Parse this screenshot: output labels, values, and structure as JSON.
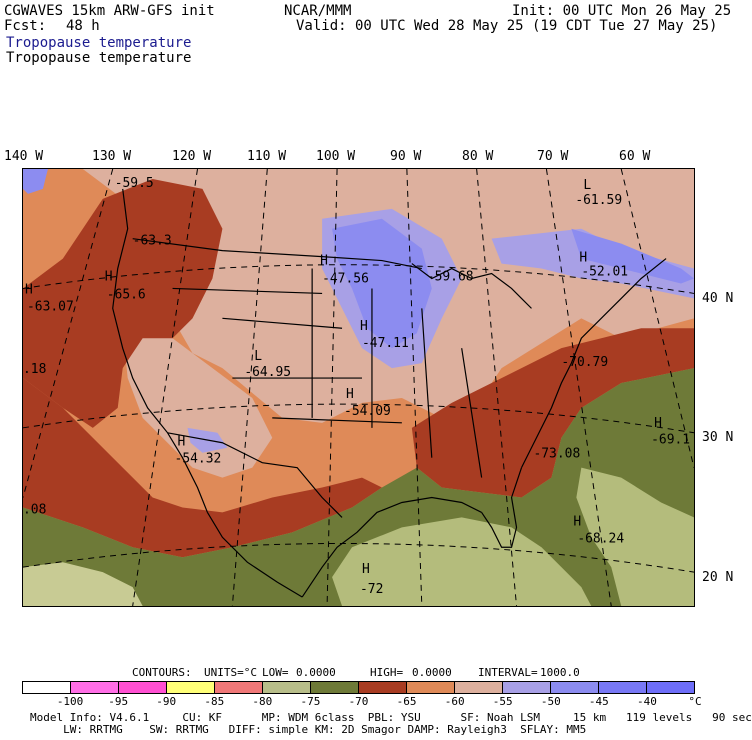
{
  "header": {
    "model": "CGWAVES 15km ARW-GFS init",
    "agency": "NCAR/MMM",
    "init": "Init: 00 UTC Mon 26 May 25",
    "fcst_label": "Fcst:",
    "fcst_value": "48 h",
    "valid": "Valid: 00 UTC Wed 28 May 25 (19 CDT Tue 27 May 25)",
    "field_title_1": "Tropopause temperature",
    "field_title_2": "Tropopause temperature"
  },
  "longitude_labels": [
    "140 W",
    "130 W",
    "120 W",
    "110 W",
    "100 W",
    "90 W",
    "80 W",
    "70 W",
    "60 W"
  ],
  "latitude_labels": [
    "40 N",
    "30 N",
    "20 N"
  ],
  "map": {
    "labels": [
      {
        "letter": "H",
        "value": "-63.07"
      },
      {
        "letter": "H",
        "value": "-65.6"
      },
      {
        "letter": "",
        "value": "-59.5"
      },
      {
        "letter": "",
        "value": "-63.3"
      },
      {
        "letter": "H",
        "value": "-47.56"
      },
      {
        "letter": "",
        "value": "-59.68"
      },
      {
        "letter": "L",
        "value": "-61.59"
      },
      {
        "letter": "H",
        "value": "-52.01"
      },
      {
        "letter": "H",
        "value": "-47.11"
      },
      {
        "letter": "L",
        "value": "-64.95"
      },
      {
        "letter": "",
        "value": "-70.79"
      },
      {
        "letter": "",
        "value": ".18"
      },
      {
        "letter": "H",
        "value": "-54.09"
      },
      {
        "letter": "H",
        "value": "-54.32"
      },
      {
        "letter": "H",
        "value": "-69.1"
      },
      {
        "letter": "",
        "value": "-73.08"
      },
      {
        "letter": "",
        "value": ".08"
      },
      {
        "letter": "H",
        "value": "-68.24"
      },
      {
        "letter": "H",
        "value": "-72"
      }
    ],
    "colors": {
      "purple_blue": "#8c8cf0",
      "lavender": "#a8a0e6",
      "pink_tan": "#ddb09e",
      "orange": "#df8a58",
      "dark_red": "#a83c22",
      "olive": "#6e7a38",
      "khaki": "#b4bc7c",
      "light_khaki": "#c8cb94"
    }
  },
  "contours_line": {
    "contours": "CONTOURS:",
    "units": "UNITS=°C",
    "low": "LOW=",
    "low_value": "0.0000",
    "high": "HIGH=",
    "high_value": "0.0000",
    "interval": "INTERVAL=",
    "interval_value": "1000.0"
  },
  "colorbar": {
    "colors": [
      "#ffffff",
      "#ff6ee6",
      "#ff50d2",
      "#ffff78",
      "#f07878",
      "#b8be8a",
      "#6e7a38",
      "#a83c22",
      "#df8a58",
      "#ddb09e",
      "#a8a0e6",
      "#8c8cf0",
      "#7878f5",
      "#6e6ef8"
    ],
    "labels": [
      "-100",
      "-95",
      "-90",
      "-85",
      "-80",
      "-75",
      "-70",
      "-65",
      "-60",
      "-55",
      "-50",
      "-45",
      "-40",
      "°C"
    ]
  },
  "footer": {
    "line1": "Model Info: V4.6.1     CU: KF      MP: WDM 6class  PBL: YSU      SF: Noah LSM     15 km   119 levels   90 sec",
    "line2": "     LW: RRTMG    SW: RRTMG   DIFF: simple KM: 2D Smagor DAMP: Rayleigh3  SFLAY: MM5"
  }
}
